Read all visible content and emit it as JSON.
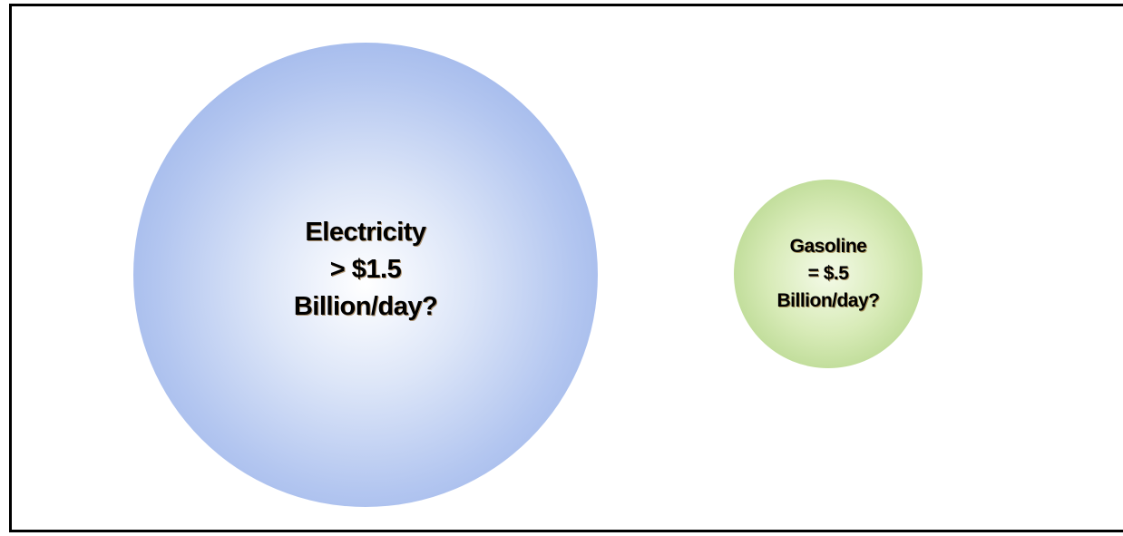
{
  "bubbles": {
    "electricity": {
      "line1": "Electricity",
      "line2": "> $1.5",
      "line3": "Billion/day?",
      "center_color": "#ffffff",
      "edge_color": "#8aa6e4"
    },
    "gasoline": {
      "line1": "Gasoline",
      "line2": "= $.5",
      "line3": "Billion/day?",
      "center_color": "#f4fae8",
      "edge_color": "#a9cf7c"
    }
  }
}
